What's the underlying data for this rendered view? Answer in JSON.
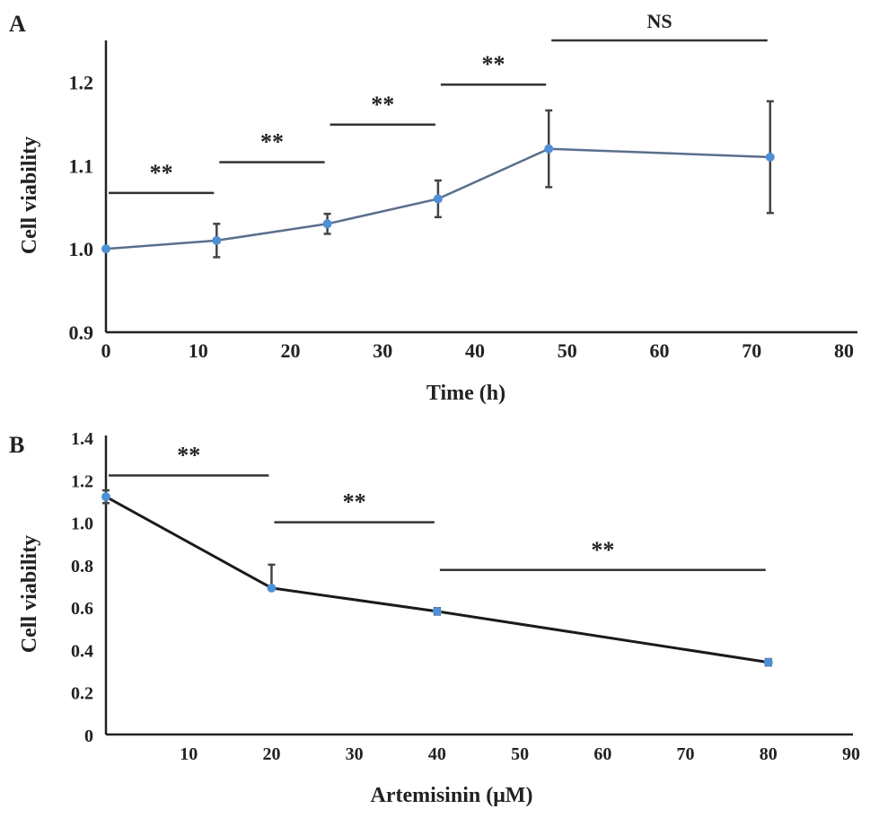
{
  "chart_data": [
    {
      "panel_label": "A",
      "type": "line",
      "title": "",
      "xlabel": "Time (h)",
      "ylabel": "Cell viability",
      "xlim": [
        0,
        80
      ],
      "ylim": [
        0.9,
        1.25
      ],
      "xticks": [
        "0",
        "10",
        "20",
        "30",
        "40",
        "50",
        "60",
        "70",
        "80"
      ],
      "yticks": [
        "0.9",
        "1.0",
        "1.1",
        "1.2"
      ],
      "x": [
        0,
        12,
        24,
        36,
        48,
        72
      ],
      "values": [
        1.0,
        1.01,
        1.03,
        1.06,
        1.12,
        1.11
      ],
      "errors": [
        0.0,
        0.02,
        0.012,
        0.022,
        0.046,
        0.067
      ],
      "line_color": "#5b6e8c",
      "marker_color": "#4f8fd6",
      "significance": [
        {
          "from": 0,
          "to": 12,
          "y": 1.067,
          "label": "**"
        },
        {
          "from": 12,
          "to": 24,
          "y": 1.104,
          "label": "**"
        },
        {
          "from": 24,
          "to": 36,
          "y": 1.149,
          "label": "**"
        },
        {
          "from": 36,
          "to": 48,
          "y": 1.197,
          "label": "**"
        },
        {
          "from": 48,
          "to": 72,
          "y": 1.25,
          "label": "NS"
        }
      ],
      "grid": false
    },
    {
      "panel_label": "B",
      "type": "line",
      "title": "",
      "xlabel": "Artemisinin (μM)",
      "ylabel": "Cell viability",
      "xlim": [
        0,
        90
      ],
      "ylim": [
        0,
        1.4
      ],
      "xticks": [
        "10",
        "20",
        "30",
        "40",
        "50",
        "60",
        "70",
        "80",
        "90"
      ],
      "yticks": [
        "0",
        "0.2",
        "0.4",
        "0.6",
        "0.8",
        "1.0",
        "1.2",
        "1.4"
      ],
      "x": [
        0,
        20,
        40,
        80
      ],
      "values": [
        1.12,
        0.69,
        0.58,
        0.34
      ],
      "errors": [
        0.03,
        0.11,
        0.015,
        0.015
      ],
      "line_color": "#1a1a1a",
      "marker_color": "#4f8fd6",
      "significance": [
        {
          "from": 0,
          "to": 20,
          "y": 1.22,
          "label": "**"
        },
        {
          "from": 20,
          "to": 40,
          "y": 1.0,
          "label": "**"
        },
        {
          "from": 40,
          "to": 80,
          "y": 0.775,
          "label": "**"
        }
      ],
      "grid": false
    }
  ]
}
